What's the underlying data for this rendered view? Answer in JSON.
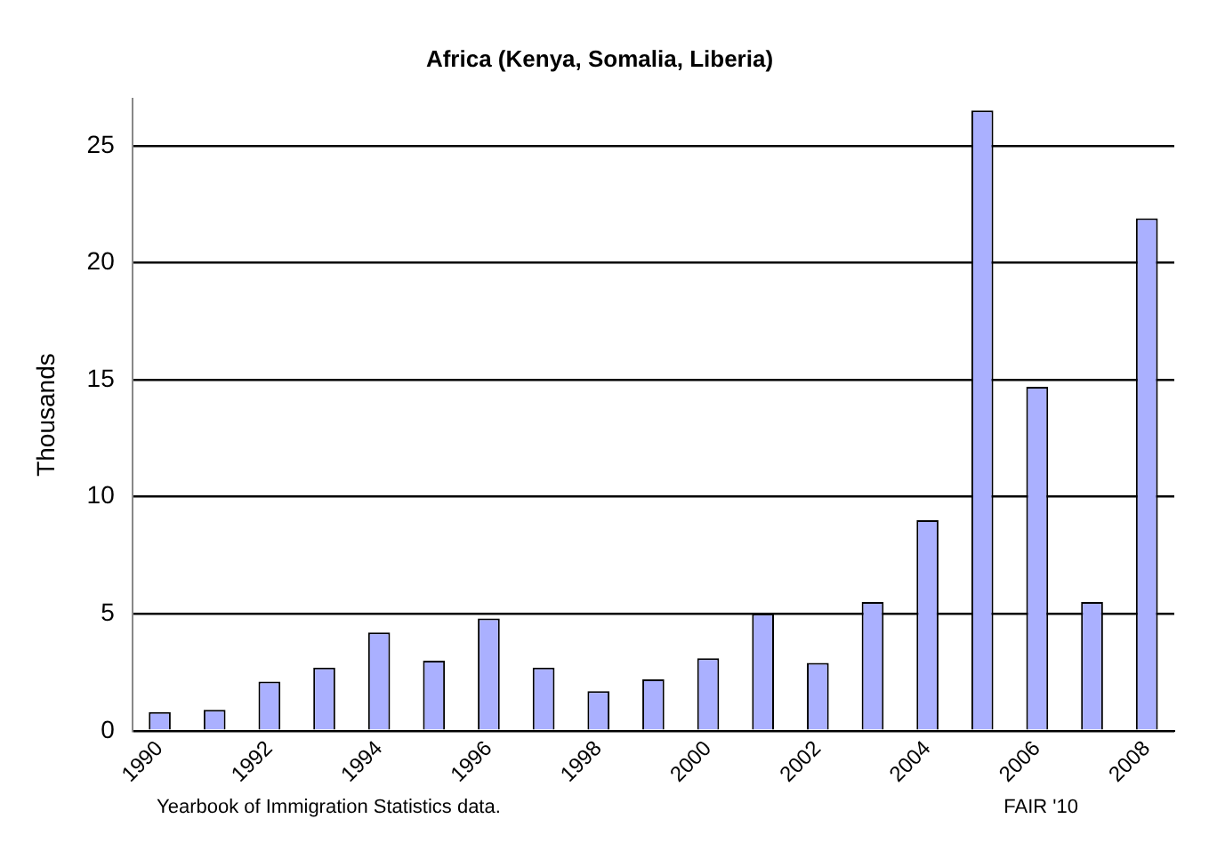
{
  "chart_data": {
    "type": "bar",
    "title": "Africa (Kenya, Somalia, Liberia)",
    "ylabel": "Thousands",
    "categories": [
      "1990",
      null,
      "1992",
      null,
      "1994",
      null,
      "1996",
      null,
      "1998",
      null,
      "2000",
      null,
      "2002",
      null,
      "2004",
      null,
      "2006",
      null,
      "2008"
    ],
    "values": [
      0.8,
      0.9,
      2.1,
      2.7,
      4.2,
      3.0,
      4.8,
      2.7,
      1.7,
      2.2,
      3.1,
      5.0,
      2.9,
      5.5,
      9.0,
      26.5,
      14.7,
      5.5,
      21.9
    ],
    "color": "#aab0ff",
    "ylim": [
      0,
      27
    ],
    "yticks": [
      0,
      5,
      10,
      15,
      20,
      25
    ],
    "grid": "y",
    "legend": false,
    "annotations": [
      "Yearbook of Immigration Statistics data.",
      "FAIR '10"
    ]
  }
}
